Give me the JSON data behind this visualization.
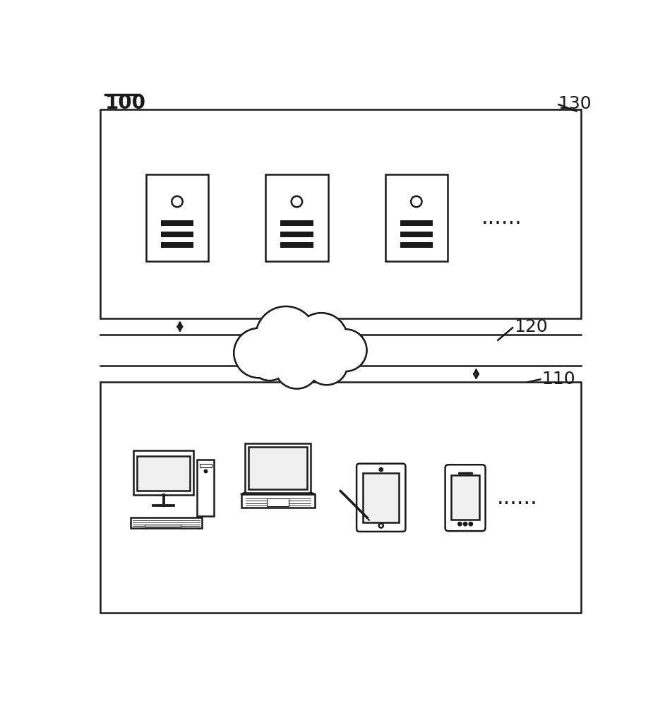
{
  "bg_color": "#ffffff",
  "line_color": "#1a1a1a",
  "label_100": "100",
  "label_130": "130",
  "label_120": "120",
  "label_110": "110",
  "dots": "......",
  "lw": 1.8
}
